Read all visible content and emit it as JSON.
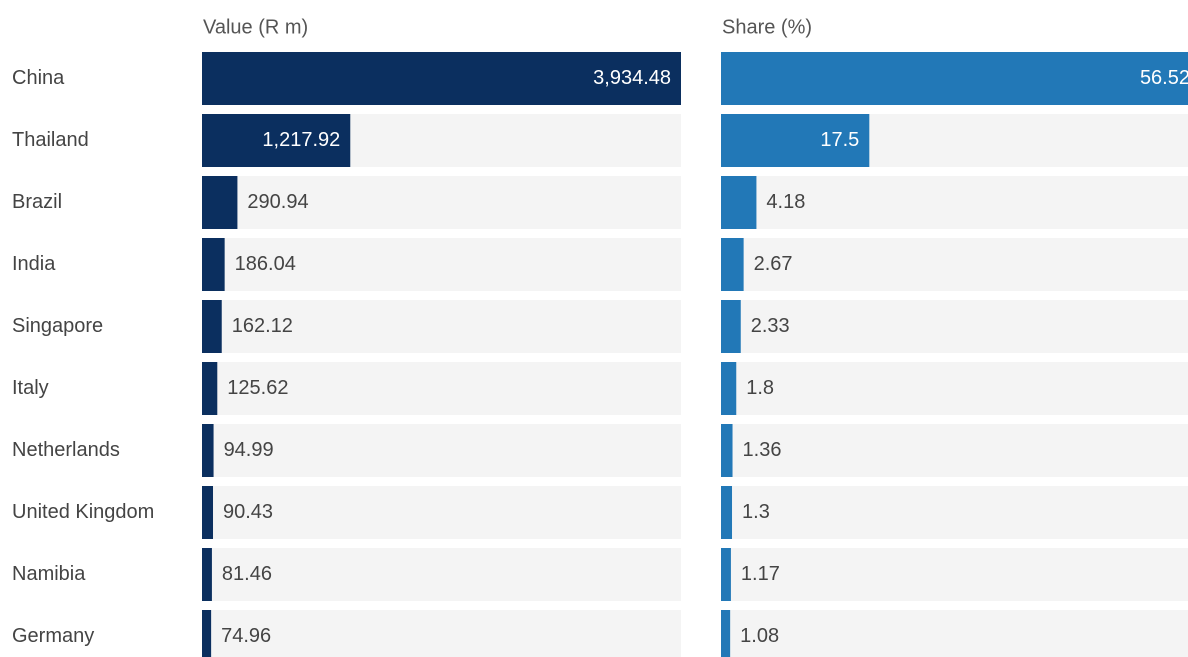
{
  "chart_data": {
    "type": "bar",
    "orientation": "horizontal",
    "categories": [
      "China",
      "Thailand",
      "Brazil",
      "India",
      "Singapore",
      "Italy",
      "Netherlands",
      "United Kingdom",
      "Namibia",
      "Germany"
    ],
    "series": [
      {
        "name": "Value (R m)",
        "color": "#0b2f5f",
        "values": [
          3934.48,
          1217.92,
          290.94,
          186.04,
          162.12,
          125.62,
          94.99,
          90.43,
          81.46,
          74.96
        ],
        "value_labels": [
          "3,934.48",
          "1,217.92",
          "290.94",
          "186.04",
          "162.12",
          "125.62",
          "94.99",
          "90.43",
          "81.46",
          "74.96"
        ]
      },
      {
        "name": "Share (%)",
        "color": "#2278b7",
        "values": [
          56.52,
          17.5,
          4.18,
          2.67,
          2.33,
          1.8,
          1.36,
          1.3,
          1.17,
          1.08
        ]
      }
    ]
  }
}
